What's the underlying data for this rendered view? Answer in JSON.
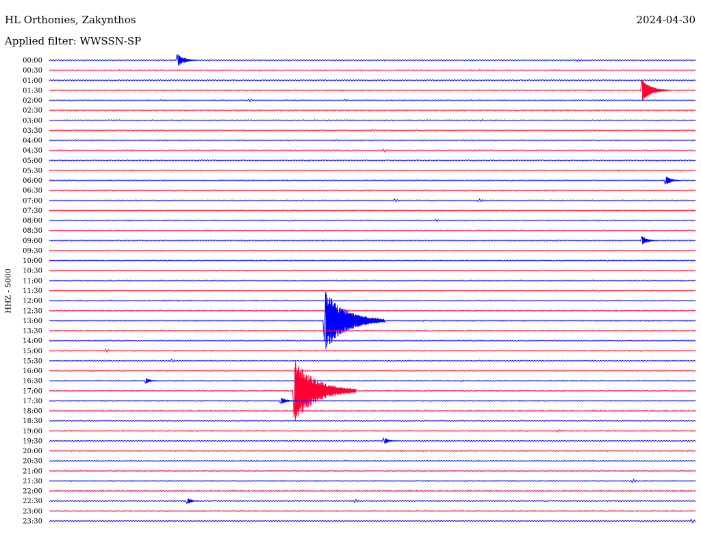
{
  "header": {
    "station": "HL Orthonies, Zakynthos",
    "filter": "Applied filter: WWSSN-SP",
    "date": "2024-04-30"
  },
  "chart_data": {
    "type": "line",
    "title": "HL Orthonies, Zakynthos",
    "subtitle": "Applied filter: WWSSN-SP",
    "ylabel": "HHZ - 5000",
    "date": "2024-04-30",
    "trace_colors": [
      "#0000ff",
      "#ff0033"
    ],
    "rows": [
      {
        "time": "00:00",
        "events": [
          {
            "x": 0.2,
            "amp": 9
          },
          {
            "x": 0.82,
            "amp": 2
          }
        ]
      },
      {
        "time": "00:30",
        "events": []
      },
      {
        "time": "01:00",
        "events": []
      },
      {
        "time": "01:30",
        "events": [
          {
            "x": 0.918,
            "amp": 16
          }
        ]
      },
      {
        "time": "02:00",
        "events": [
          {
            "x": 0.31,
            "amp": 2.5
          },
          {
            "x": 0.46,
            "amp": 1.5
          }
        ]
      },
      {
        "time": "02:30",
        "events": [
          {
            "x": 0.29,
            "amp": 1.5
          }
        ]
      },
      {
        "time": "03:00",
        "events": [
          {
            "x": 0.11,
            "amp": 1.5
          },
          {
            "x": 0.67,
            "amp": 1.5
          },
          {
            "x": 0.98,
            "amp": 1.2
          }
        ]
      },
      {
        "time": "03:30",
        "events": [
          {
            "x": 0.5,
            "amp": 2
          }
        ]
      },
      {
        "time": "04:00",
        "events": []
      },
      {
        "time": "04:30",
        "events": [
          {
            "x": 0.13,
            "amp": 1.5
          },
          {
            "x": 0.52,
            "amp": 2.5
          }
        ]
      },
      {
        "time": "05:00",
        "events": []
      },
      {
        "time": "05:30",
        "events": [
          {
            "x": 0.13,
            "amp": 1.5
          },
          {
            "x": 0.88,
            "amp": 1.5
          },
          {
            "x": 0.98,
            "amp": 1.5
          }
        ]
      },
      {
        "time": "06:00",
        "events": [
          {
            "x": 0.955,
            "amp": 6
          }
        ]
      },
      {
        "time": "06:30",
        "events": []
      },
      {
        "time": "07:00",
        "events": [
          {
            "x": 0.535,
            "amp": 3
          },
          {
            "x": 0.665,
            "amp": 3
          }
        ]
      },
      {
        "time": "07:30",
        "events": []
      },
      {
        "time": "08:00",
        "events": [
          {
            "x": 0.6,
            "amp": 2
          }
        ]
      },
      {
        "time": "08:30",
        "events": []
      },
      {
        "time": "09:00",
        "events": [
          {
            "x": 0.918,
            "amp": 6
          }
        ]
      },
      {
        "time": "09:30",
        "events": []
      },
      {
        "time": "10:00",
        "events": []
      },
      {
        "time": "10:30",
        "events": []
      },
      {
        "time": "11:00",
        "events": []
      },
      {
        "time": "11:30",
        "events": [
          {
            "x": 0.85,
            "amp": 1.5
          }
        ]
      },
      {
        "time": "12:00",
        "events": [
          {
            "x": 0.2,
            "amp": 1.5
          }
        ]
      },
      {
        "time": "12:30",
        "events": []
      },
      {
        "time": "13:00",
        "events": [
          {
            "x": 0.428,
            "amp": 44
          }
        ]
      },
      {
        "time": "13:30",
        "events": []
      },
      {
        "time": "14:00",
        "events": []
      },
      {
        "time": "15:00",
        "events": [
          {
            "x": 0.09,
            "amp": 2.5
          }
        ]
      },
      {
        "time": "15:30",
        "events": [
          {
            "x": 0.19,
            "amp": 2.5
          }
        ]
      },
      {
        "time": "16:00",
        "events": [
          {
            "x": 0.065,
            "amp": 1.5
          }
        ]
      },
      {
        "time": "16:30",
        "events": [
          {
            "x": 0.15,
            "amp": 4
          },
          {
            "x": 0.64,
            "amp": 1.5
          }
        ]
      },
      {
        "time": "17:00",
        "events": [
          {
            "x": 0.38,
            "amp": 46
          },
          {
            "x": 0.54,
            "amp": 1.5
          }
        ]
      },
      {
        "time": "17:30",
        "events": [
          {
            "x": 0.36,
            "amp": 5
          }
        ]
      },
      {
        "time": "18:00",
        "events": []
      },
      {
        "time": "18:30",
        "events": []
      },
      {
        "time": "19:00",
        "events": [
          {
            "x": 0.79,
            "amp": 2
          }
        ]
      },
      {
        "time": "19:30",
        "events": [
          {
            "x": 0.52,
            "amp": 4
          }
        ]
      },
      {
        "time": "20:00",
        "events": []
      },
      {
        "time": "20:30",
        "events": []
      },
      {
        "time": "21:00",
        "events": []
      },
      {
        "time": "21:30",
        "events": [
          {
            "x": 0.905,
            "amp": 2.5
          }
        ]
      },
      {
        "time": "22:00",
        "events": []
      },
      {
        "time": "22:30",
        "events": [
          {
            "x": 0.215,
            "amp": 4
          },
          {
            "x": 0.475,
            "amp": 2.5
          }
        ]
      },
      {
        "time": "23:00",
        "events": []
      },
      {
        "time": "23:30",
        "events": [
          {
            "x": 0.995,
            "amp": 3
          }
        ]
      }
    ]
  }
}
